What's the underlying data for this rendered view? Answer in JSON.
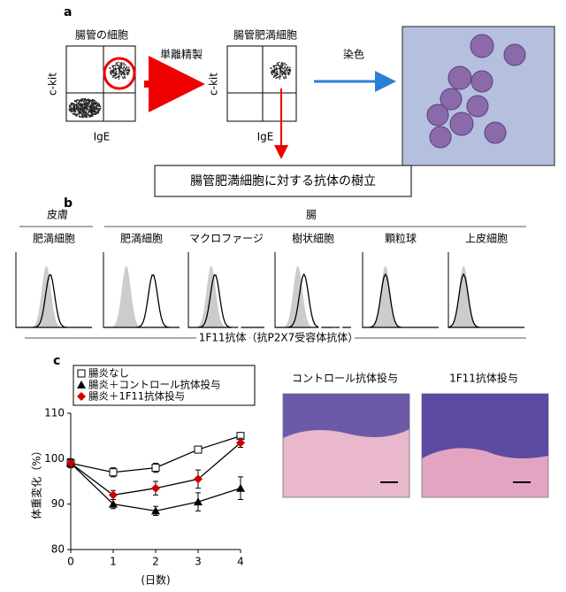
{
  "panel_a": {
    "label": "a",
    "plot1_title": "腸管の細胞",
    "arrow_label": "単離精製",
    "plot2_title": "腸管肥満細胞",
    "stain_label": "染色",
    "y_axis": "c-kit",
    "x_axis": "IgE",
    "result": "腸管肥満細胞に対する抗体の樹立"
  },
  "panel_b": {
    "label": "b",
    "group_skin": "皮膚",
    "group_gut": "腸",
    "histograms": [
      "肥満細胞",
      "肥満細胞",
      "マクロファージ",
      "樹状細胞",
      "顆粒球",
      "上皮細胞"
    ],
    "x_axis": "1F11抗体（抗P2X7受容体抗体）"
  },
  "panel_c": {
    "label": "c",
    "image_titles": [
      "コントロール抗体投与",
      "1F11抗体投与"
    ]
  },
  "chart_data": {
    "type": "line",
    "x_label": "(日数)",
    "y_label": "体重変化（%）",
    "x": [
      0,
      1,
      2,
      3,
      4
    ],
    "series": [
      {
        "name": "腸炎なし",
        "color": "#000000",
        "marker": "square",
        "values": [
          99,
          97,
          98,
          102,
          105
        ],
        "errors": [
          1,
          1,
          1,
          0.5,
          0.5
        ]
      },
      {
        "name": "腸炎＋コントロール抗体投与",
        "color": "#000000",
        "marker": "triangle",
        "values": [
          99,
          90,
          88.5,
          90.5,
          93.5
        ],
        "errors": [
          0.5,
          1,
          1,
          2,
          2.5
        ]
      },
      {
        "name": "腸炎＋1F11抗体投与",
        "color": "#cc0000",
        "marker": "diamond",
        "values": [
          99,
          92,
          93.5,
          95.5,
          103.5
        ],
        "errors": [
          0.5,
          1,
          1.5,
          2,
          1
        ]
      }
    ],
    "xlim": [
      0,
      4
    ],
    "xticks": [
      0,
      1,
      2,
      3,
      4
    ],
    "ylim": [
      80,
      110
    ],
    "yticks": [
      80,
      90,
      100,
      110
    ]
  }
}
